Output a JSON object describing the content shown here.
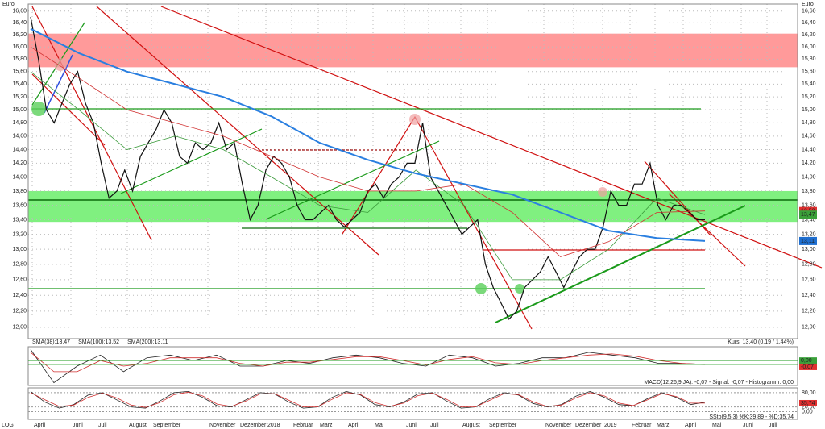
{
  "chart_data": {
    "type": "line",
    "unit_label": "Euro",
    "log_label": "LOG",
    "log": true,
    "grid": true,
    "ylim": [
      11.86,
      16.72
    ],
    "yticks": [
      {
        "value": 16.6,
        "label": "16,60"
      },
      {
        "value": 16.4,
        "label": "16,40"
      },
      {
        "value": 16.2,
        "label": "16,20"
      },
      {
        "value": 16.0,
        "label": "16,00"
      },
      {
        "value": 15.8,
        "label": "15,80"
      },
      {
        "value": 15.6,
        "label": "15,60"
      },
      {
        "value": 15.4,
        "label": "15,40"
      },
      {
        "value": 15.2,
        "label": "15,20"
      },
      {
        "value": 15.0,
        "label": "15,00"
      },
      {
        "value": 14.8,
        "label": "14,80"
      },
      {
        "value": 14.6,
        "label": "14,60"
      },
      {
        "value": 14.4,
        "label": "14,40"
      },
      {
        "value": 14.2,
        "label": "14,20"
      },
      {
        "value": 14.0,
        "label": "14,00"
      },
      {
        "value": 13.8,
        "label": "13,80"
      },
      {
        "value": 13.6,
        "label": "13,60"
      },
      {
        "value": 13.4,
        "label": "13,40"
      },
      {
        "value": 13.2,
        "label": "13,20"
      },
      {
        "value": 13.0,
        "label": "13,00"
      },
      {
        "value": 12.8,
        "label": "12,80"
      },
      {
        "value": 12.6,
        "label": "12,60"
      },
      {
        "value": 12.4,
        "label": "12,40"
      },
      {
        "value": 12.2,
        "label": "12,20"
      },
      {
        "value": 12.0,
        "label": "12,00"
      }
    ],
    "months": [
      "April",
      "Juni",
      "Juli",
      "August",
      "September",
      "November",
      "Dezember",
      "2018",
      "Februar",
      "März",
      "April",
      "Mai",
      "Juni",
      "Juli",
      "August",
      "September",
      "November",
      "Dezember",
      "2019",
      "Februar",
      "März",
      "April",
      "Mai",
      "Juni",
      "Juli"
    ],
    "zones": [
      {
        "from": 15.67,
        "to": 16.22,
        "color": "#ff9a9a"
      },
      {
        "from": 13.37,
        "to": 13.8,
        "color": "#80f080"
      }
    ],
    "series": [
      {
        "name": "Kurs",
        "color": "#111111",
        "width": 1.2,
        "values": [
          16.5,
          15.8,
          15.0,
          14.8,
          15.1,
          15.4,
          15.6,
          15.1,
          14.8,
          14.2,
          13.7,
          13.8,
          14.1,
          13.8,
          14.3,
          14.5,
          14.7,
          15.0,
          14.8,
          14.3,
          14.2,
          14.5,
          14.4,
          14.5,
          14.8,
          14.4,
          14.5,
          13.9,
          13.4,
          13.6,
          14.1,
          14.3,
          14.2,
          14.0,
          13.6,
          13.4,
          13.4,
          13.5,
          13.6,
          13.4,
          13.3,
          13.4,
          13.5,
          13.8,
          13.9,
          13.7,
          13.9,
          14.0,
          14.2,
          14.2,
          14.8,
          14.0,
          13.8,
          13.6,
          13.4,
          13.2,
          13.3,
          13.4,
          12.8,
          12.5,
          12.3,
          12.1,
          12.2,
          12.5,
          12.6,
          12.7,
          12.9,
          12.7,
          12.5,
          12.7,
          12.9,
          13.0,
          13.0,
          13.3,
          13.8,
          13.6,
          13.6,
          13.9,
          13.9,
          14.2,
          13.6,
          13.4,
          13.6,
          13.6,
          13.5,
          13.4,
          13.4
        ]
      },
      {
        "name": "SMA(38):13,47",
        "color": "#3a9a3a",
        "width": 0.8,
        "values": [
          15.6,
          15.0,
          14.4,
          14.6,
          14.4,
          14.0,
          13.6,
          13.5,
          14.1,
          13.6,
          12.6,
          12.6,
          13.0,
          13.7,
          13.47
        ]
      },
      {
        "name": "SMA(100):13,52",
        "color": "#d03030",
        "width": 0.8,
        "values": [
          16.0,
          15.5,
          15.0,
          14.8,
          14.6,
          14.3,
          14.0,
          13.8,
          13.8,
          13.9,
          13.5,
          12.9,
          13.1,
          13.5,
          13.52
        ]
      },
      {
        "name": "SMA(200):13,11",
        "color": "#2a7fe0",
        "width": 2,
        "values": [
          16.3,
          15.9,
          15.6,
          15.4,
          15.2,
          14.9,
          14.5,
          14.25,
          14.05,
          13.9,
          13.75,
          13.5,
          13.25,
          13.15,
          13.11
        ]
      }
    ],
    "badges": [
      {
        "value": 13.52,
        "label": "13,52",
        "color": "#e03030"
      },
      {
        "value": 13.47,
        "label": "13,47",
        "color": "#3aa03a"
      },
      {
        "value": 13.11,
        "label": "13,11",
        "color": "#1f6fd0"
      }
    ],
    "kurs_label": "Kurs: 13,40 (0,19 / 1,44%)",
    "macd": {
      "label": "MACD(12,26,9,JA): -0,07 - Signal: -0,07 - Histogramm: 0,00",
      "ylim": [
        -0.45,
        0.25
      ],
      "badges": [
        {
          "value": 0.0,
          "label": "0,00",
          "color": "#3aa03a"
        },
        {
          "value": -0.07,
          "label": "-0,07",
          "color": "#e03030"
        }
      ],
      "series": [
        {
          "name": "MACD",
          "color": "#222",
          "values": [
            0.2,
            -0.4,
            -0.1,
            0.1,
            -0.2,
            0.05,
            0.1,
            0.0,
            0.1,
            -0.1,
            -0.1,
            0.0,
            -0.05,
            0.05,
            0.1,
            0.05,
            -0.05,
            -0.1,
            0.1,
            0.05,
            -0.1,
            -0.05,
            0.05,
            0.05,
            0.15,
            0.1,
            0.05,
            -0.05,
            -0.05,
            -0.07
          ]
        },
        {
          "name": "Signal",
          "color": "#d03030",
          "values": [
            0.15,
            -0.2,
            -0.2,
            0.0,
            -0.1,
            -0.05,
            0.05,
            0.05,
            0.05,
            -0.05,
            -0.1,
            -0.03,
            -0.03,
            0.02,
            0.07,
            0.07,
            0.0,
            -0.08,
            0.02,
            0.07,
            -0.04,
            -0.07,
            0.0,
            0.05,
            0.1,
            0.12,
            0.08,
            0.0,
            -0.05,
            -0.07
          ]
        }
      ]
    },
    "stoch": {
      "label": "SSto(9,5,3) %K:39,89 - %D:35,74",
      "ylim": [
        -32,
        100
      ],
      "yticks": [
        {
          "value": 80,
          "label": "80,00"
        },
        {
          "value": 20,
          "label": "20,00"
        },
        {
          "value": 0,
          "label": "0,00"
        }
      ],
      "badge": {
        "value": 35.74,
        "label": "35,74",
        "color": "#e03030"
      },
      "series": [
        {
          "name": "%K",
          "color": "#222",
          "values": [
            85,
            40,
            15,
            30,
            70,
            80,
            50,
            20,
            15,
            45,
            80,
            85,
            60,
            25,
            20,
            50,
            80,
            75,
            40,
            15,
            20,
            60,
            85,
            70,
            30,
            20,
            40,
            75,
            80,
            45,
            15,
            20,
            55,
            80,
            70,
            35,
            20,
            30,
            65,
            85,
            60,
            30,
            25,
            55,
            80,
            60,
            30,
            40
          ]
        },
        {
          "name": "%D",
          "color": "#d03030",
          "values": [
            80,
            50,
            22,
            28,
            60,
            78,
            58,
            28,
            18,
            38,
            72,
            82,
            66,
            32,
            22,
            45,
            75,
            76,
            48,
            20,
            20,
            52,
            80,
            72,
            38,
            22,
            36,
            68,
            78,
            52,
            20,
            20,
            48,
            76,
            72,
            42,
            22,
            28,
            58,
            80,
            66,
            36,
            26,
            50,
            76,
            64,
            36,
            36
          ]
        }
      ]
    }
  }
}
